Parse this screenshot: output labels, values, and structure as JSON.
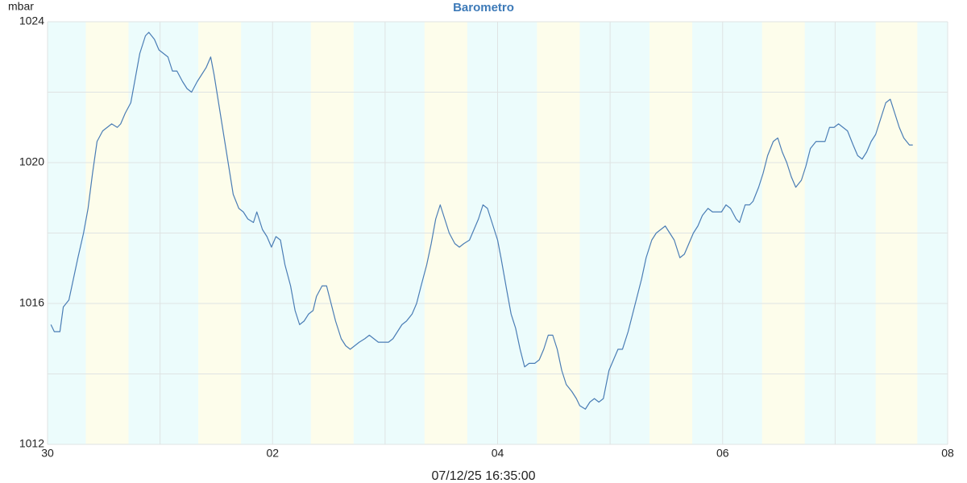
{
  "chart_data": {
    "type": "line",
    "title": "Barometro",
    "ylabel": "mbar",
    "xlabel": "07/12/25 16:35:00",
    "xlim": [
      0,
      8
    ],
    "xticks": [
      {
        "value": 0,
        "label": "30"
      },
      {
        "value": 2,
        "label": "02"
      },
      {
        "value": 4,
        "label": "04"
      },
      {
        "value": 6,
        "label": "06"
      },
      {
        "value": 8,
        "label": "08"
      }
    ],
    "xgrid_minor": [
      1,
      3,
      5,
      7
    ],
    "ylim": [
      1012,
      1024
    ],
    "yticks": [
      1012,
      1016,
      1020,
      1024
    ],
    "ygrid_minor": [
      1014,
      1018,
      1022
    ],
    "grid": true,
    "background": "#ecfcfc",
    "bands": {
      "color": "#fdfdeb",
      "ranges": [
        [
          0.34,
          0.72
        ],
        [
          1.34,
          1.72
        ],
        [
          2.34,
          2.72
        ],
        [
          3.35,
          3.73
        ],
        [
          4.35,
          4.73
        ],
        [
          5.35,
          5.73
        ],
        [
          6.35,
          6.73
        ],
        [
          7.36,
          7.73
        ]
      ]
    },
    "series": [
      {
        "name": "mbar",
        "color": "#4a7db5",
        "x": [
          0.03,
          0.06,
          0.11,
          0.14,
          0.19,
          0.23,
          0.27,
          0.32,
          0.36,
          0.4,
          0.44,
          0.49,
          0.53,
          0.57,
          0.62,
          0.65,
          0.69,
          0.74,
          0.78,
          0.82,
          0.87,
          0.9,
          0.95,
          0.99,
          1.03,
          1.07,
          1.11,
          1.15,
          1.2,
          1.24,
          1.28,
          1.33,
          1.37,
          1.41,
          1.45,
          1.48,
          1.53,
          1.57,
          1.61,
          1.65,
          1.7,
          1.74,
          1.78,
          1.83,
          1.86,
          1.91,
          1.95,
          1.99,
          2.03,
          2.07,
          2.11,
          2.16,
          2.2,
          2.24,
          2.28,
          2.32,
          2.36,
          2.39,
          2.44,
          2.48,
          2.52,
          2.56,
          2.61,
          2.65,
          2.69,
          2.73,
          2.77,
          2.82,
          2.86,
          2.9,
          2.94,
          2.99,
          3.03,
          3.07,
          3.11,
          3.15,
          3.19,
          3.24,
          3.28,
          3.32,
          3.37,
          3.41,
          3.45,
          3.49,
          3.53,
          3.57,
          3.62,
          3.66,
          3.7,
          3.75,
          3.79,
          3.83,
          3.87,
          3.91,
          3.95,
          4.0,
          4.03,
          4.08,
          4.12,
          4.16,
          4.2,
          4.24,
          4.28,
          4.33,
          4.37,
          4.41,
          4.45,
          4.49,
          4.53,
          4.57,
          4.61,
          4.66,
          4.7,
          4.73,
          4.78,
          4.82,
          4.86,
          4.9,
          4.94,
          4.99,
          5.03,
          5.07,
          5.11,
          5.16,
          5.2,
          5.24,
          5.28,
          5.32,
          5.37,
          5.41,
          5.45,
          5.49,
          5.53,
          5.57,
          5.62,
          5.66,
          5.7,
          5.74,
          5.78,
          5.82,
          5.87,
          5.91,
          5.95,
          5.99,
          6.03,
          6.07,
          6.12,
          6.15,
          6.2,
          6.24,
          6.27,
          6.32,
          6.36,
          6.4,
          6.45,
          6.49,
          6.53,
          6.57,
          6.61,
          6.65,
          6.7,
          6.74,
          6.78,
          6.83,
          6.86,
          6.91,
          6.95,
          6.99,
          7.03,
          7.07,
          7.11,
          7.16,
          7.2,
          7.24,
          7.28,
          7.32,
          7.36,
          7.41,
          7.45,
          7.49,
          7.53,
          7.57,
          7.61,
          7.66,
          7.69
        ],
        "values": [
          1015.4,
          1015.2,
          1015.2,
          1015.9,
          1016.1,
          1016.7,
          1017.3,
          1018.0,
          1018.7,
          1019.7,
          1020.6,
          1020.9,
          1021.0,
          1021.1,
          1021.0,
          1021.1,
          1021.4,
          1021.7,
          1022.4,
          1023.1,
          1023.6,
          1023.7,
          1023.5,
          1023.2,
          1023.1,
          1023.0,
          1022.6,
          1022.6,
          1022.3,
          1022.1,
          1022.0,
          1022.3,
          1022.5,
          1022.7,
          1023.0,
          1022.5,
          1021.5,
          1020.7,
          1019.9,
          1019.1,
          1018.7,
          1018.6,
          1018.4,
          1018.3,
          1018.6,
          1018.1,
          1017.9,
          1017.6,
          1017.9,
          1017.8,
          1017.1,
          1016.5,
          1015.8,
          1015.4,
          1015.5,
          1015.7,
          1015.8,
          1016.2,
          1016.5,
          1016.5,
          1016.0,
          1015.5,
          1015.0,
          1014.8,
          1014.7,
          1014.8,
          1014.9,
          1015.0,
          1015.1,
          1015.0,
          1014.9,
          1014.9,
          1014.9,
          1015.0,
          1015.2,
          1015.4,
          1015.5,
          1015.7,
          1016.0,
          1016.5,
          1017.1,
          1017.7,
          1018.4,
          1018.8,
          1018.4,
          1018.0,
          1017.7,
          1017.6,
          1017.7,
          1017.8,
          1018.1,
          1018.4,
          1018.8,
          1018.7,
          1018.3,
          1017.8,
          1017.3,
          1016.4,
          1015.7,
          1015.3,
          1014.7,
          1014.2,
          1014.3,
          1014.3,
          1014.4,
          1014.7,
          1015.1,
          1015.1,
          1014.7,
          1014.1,
          1013.7,
          1013.5,
          1013.3,
          1013.1,
          1013.0,
          1013.2,
          1013.3,
          1013.2,
          1013.3,
          1014.1,
          1014.4,
          1014.7,
          1014.7,
          1015.2,
          1015.7,
          1016.2,
          1016.7,
          1017.3,
          1017.8,
          1018.0,
          1018.1,
          1018.2,
          1018.0,
          1017.8,
          1017.3,
          1017.4,
          1017.7,
          1018.0,
          1018.2,
          1018.5,
          1018.7,
          1018.6,
          1018.6,
          1018.6,
          1018.8,
          1018.7,
          1018.4,
          1018.3,
          1018.8,
          1018.8,
          1018.9,
          1019.3,
          1019.7,
          1020.2,
          1020.6,
          1020.7,
          1020.3,
          1020.0,
          1019.6,
          1019.3,
          1019.5,
          1019.9,
          1020.4,
          1020.6,
          1020.6,
          1020.6,
          1021.0,
          1021.0,
          1021.1,
          1021.0,
          1020.9,
          1020.5,
          1020.2,
          1020.1,
          1020.3,
          1020.6,
          1020.8,
          1021.3,
          1021.7,
          1021.8,
          1021.4,
          1021.0,
          1020.7,
          1020.5,
          1020.5
        ]
      }
    ]
  }
}
